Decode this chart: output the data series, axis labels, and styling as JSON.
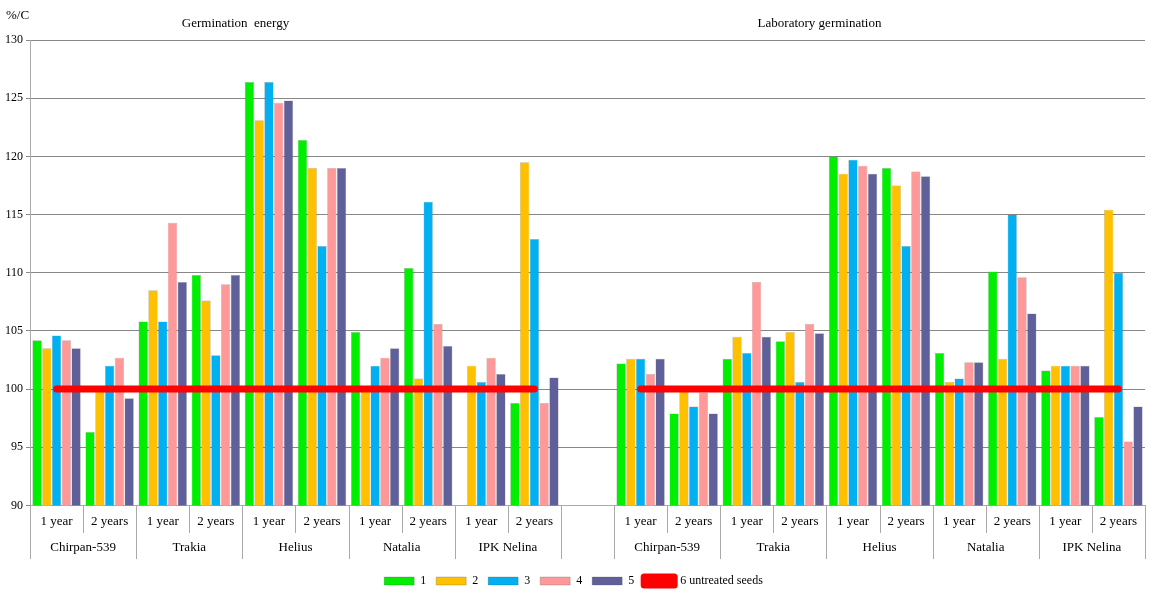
{
  "chart_data": {
    "type": "bar",
    "ylabel": "%/C",
    "categories": [
      "1 year",
      "2 years",
      "1 year",
      "2 years",
      "1 year",
      "2 years",
      "1 year",
      "2 years",
      "1 year",
      "2 years",
      null,
      "1 year",
      "2 years",
      "1 year",
      "2 years",
      "1 year",
      "2 years",
      "1 year",
      "2 years",
      "1 year",
      "2 years"
    ],
    "series": [
      {
        "name": "1",
        "color": "#00ee00",
        "values": [
          104.2,
          96.3,
          105.8,
          109.8,
          126.4,
          121.4,
          104.9,
          110.4,
          null,
          98.8,
          null,
          102.2,
          97.9,
          102.6,
          104.1,
          120.0,
          119.0,
          103.1,
          110.1,
          101.6,
          97.6
        ]
      },
      {
        "name": "2",
        "color": "#ffc000",
        "values": [
          103.5,
          100,
          108.5,
          107.6,
          123.1,
          119.0,
          100,
          100.9,
          102.0,
          119.5,
          null,
          102.6,
          100,
          104.5,
          104.9,
          118.5,
          117.5,
          100.6,
          102.6,
          102.0,
          115.4
        ]
      },
      {
        "name": "3",
        "color": "#00b0f0",
        "values": [
          104.6,
          102.0,
          105.8,
          102.9,
          126.4,
          112.3,
          102.0,
          116.1,
          100.6,
          112.9,
          null,
          102.6,
          98.5,
          103.1,
          100.6,
          119.7,
          112.3,
          100.9,
          115.0,
          102.0,
          110.0
        ]
      },
      {
        "name": "4",
        "color": "#ff9999",
        "values": [
          104.2,
          102.7,
          114.3,
          109.0,
          124.6,
          119.0,
          102.7,
          105.6,
          102.7,
          98.8,
          null,
          101.3,
          99.7,
          109.2,
          105.6,
          119.2,
          118.7,
          102.3,
          109.6,
          102.0,
          95.5
        ]
      },
      {
        "name": "5",
        "color": "#5f5f99",
        "values": [
          103.5,
          99.2,
          109.2,
          109.8,
          124.8,
          119.0,
          103.5,
          103.7,
          101.3,
          101.0,
          null,
          102.6,
          97.9,
          104.5,
          104.8,
          118.5,
          118.3,
          102.3,
          106.5,
          102.0,
          98.5
        ]
      },
      {
        "name": "6 untreated seeds",
        "type": "line",
        "color": "#ff0000",
        "values": [
          100,
          100,
          100,
          100,
          100,
          100,
          100,
          100,
          100,
          100,
          null,
          100,
          100,
          100,
          100,
          100,
          100,
          100,
          100,
          100,
          100
        ]
      }
    ],
    "ylim": [
      90,
      130
    ],
    "yticks": [
      90,
      95,
      100,
      105,
      110,
      115,
      120,
      125,
      130
    ],
    "grid": "y",
    "legend": "bottom",
    "marker": "none",
    "annotations": [
      "Germination  energy",
      "Laboratory germination",
      "Chirpan-539",
      "Trakia",
      "Helius",
      "Natalia",
      "IPK Nelina",
      "Chirpan-539",
      "Trakia",
      "Helius",
      "Natalia",
      "IPK Nelina"
    ]
  }
}
